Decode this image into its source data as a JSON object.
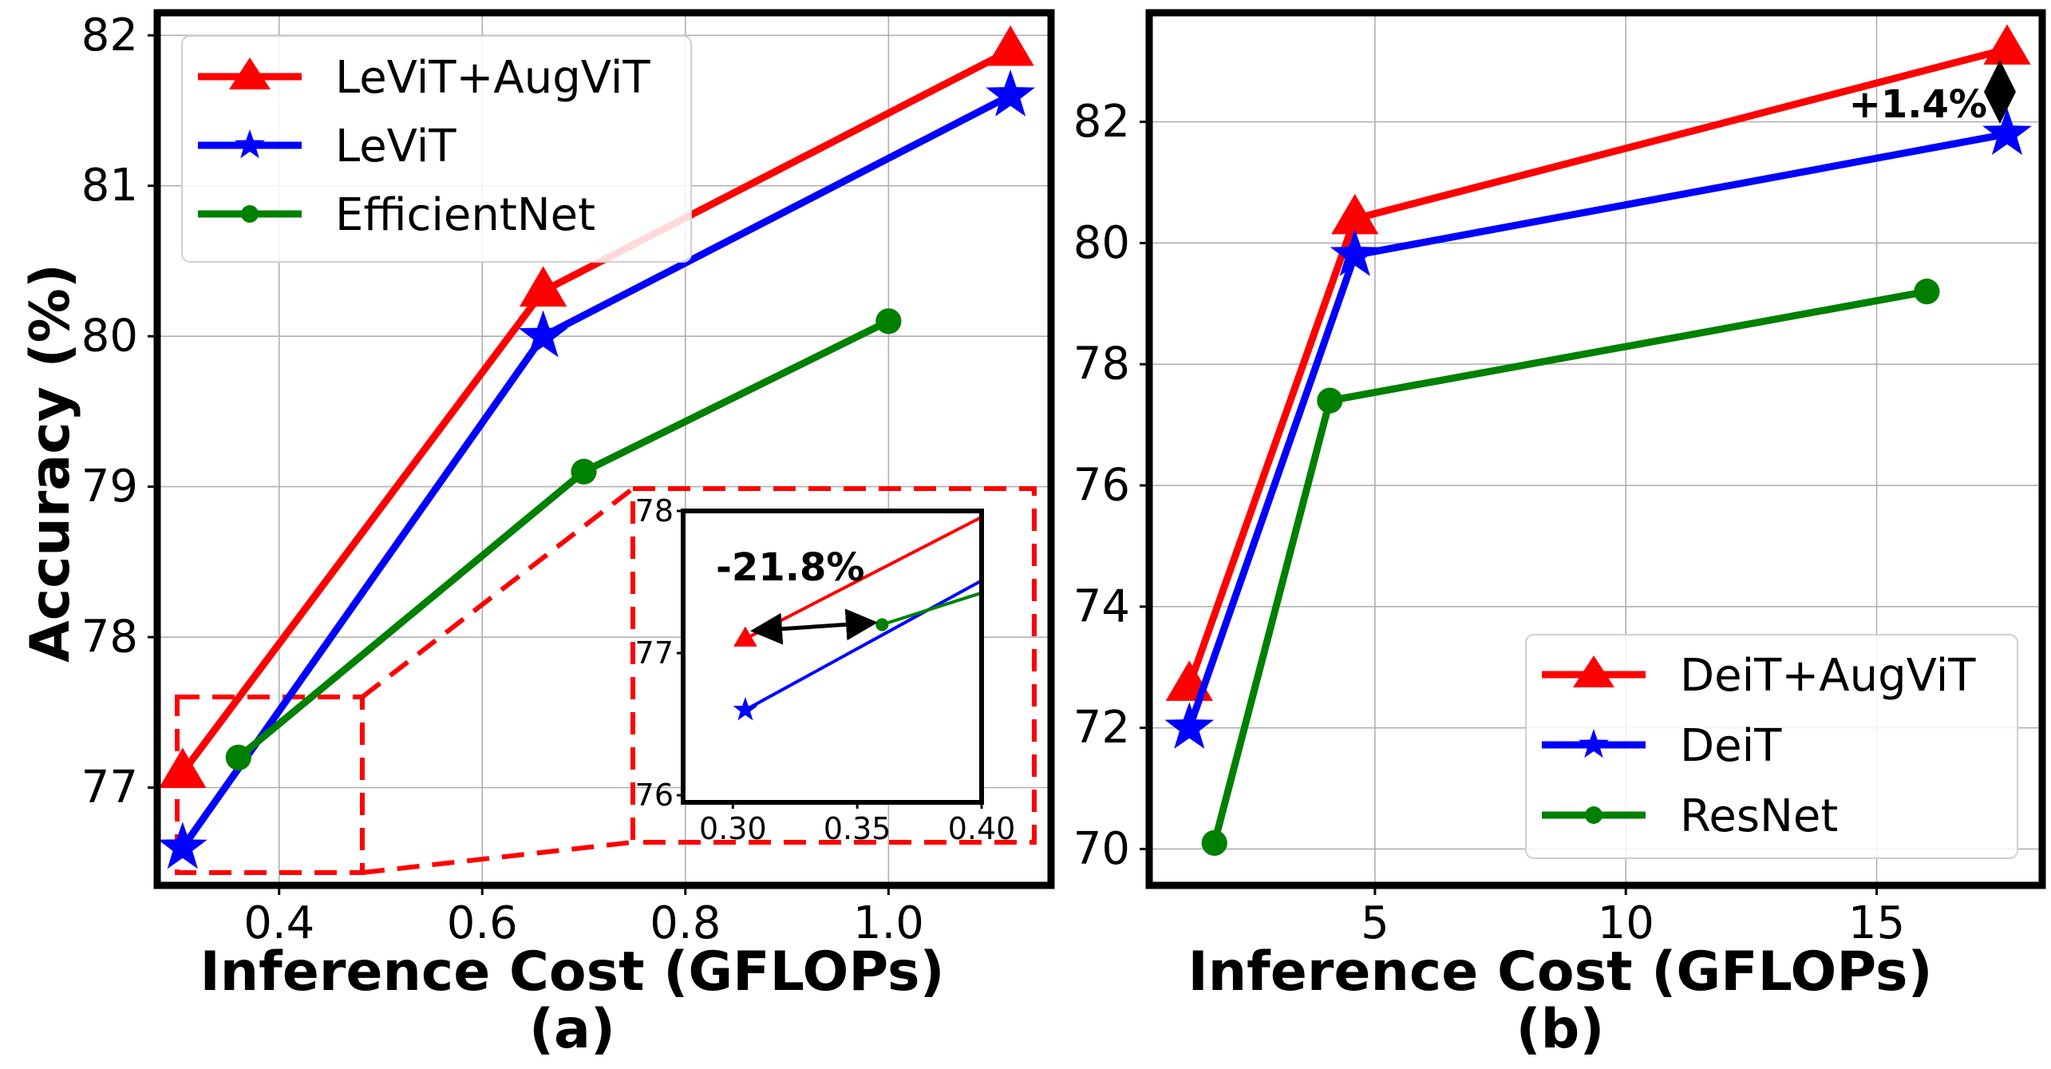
{
  "chart_data": [
    {
      "type": "line",
      "subplot_label": "(a)",
      "xlabel": "Inference Cost (GFLOPs)",
      "ylabel": "Accuracy (%)",
      "xlim": [
        0.28,
        1.16
      ],
      "ylim": [
        76.35,
        82.15
      ],
      "xticks": [
        0.4,
        0.6,
        0.8,
        1.0
      ],
      "xtick_labels": [
        "0.4",
        "0.6",
        "0.8",
        "1.0"
      ],
      "yticks": [
        77,
        78,
        79,
        80,
        81,
        82
      ],
      "ytick_labels": [
        "77",
        "78",
        "79",
        "80",
        "81",
        "82"
      ],
      "grid": true,
      "legend_position": "top-left",
      "series": [
        {
          "name": "LeViT+AugViT",
          "color": "#ff0000",
          "marker": "triangle",
          "x": [
            0.305,
            0.66,
            1.12
          ],
          "y": [
            77.1,
            80.3,
            81.9
          ]
        },
        {
          "name": "LeViT",
          "color": "#0000ff",
          "marker": "star",
          "x": [
            0.305,
            0.66,
            1.12
          ],
          "y": [
            76.6,
            80.0,
            81.6
          ]
        },
        {
          "name": "EfficientNet",
          "color": "#008000",
          "marker": "circle",
          "x": [
            0.36,
            0.7,
            1.0
          ],
          "y": [
            77.2,
            79.1,
            80.1
          ]
        }
      ],
      "inset": {
        "xlim": [
          0.28,
          0.4
        ],
        "ylim": [
          75.95,
          78.0
        ],
        "xticks": [
          0.3,
          0.35,
          0.4
        ],
        "xtick_labels": [
          "0.30",
          "0.35",
          "0.40"
        ],
        "yticks": [
          76,
          77,
          78
        ],
        "ytick_labels": [
          "76",
          "77",
          "78"
        ],
        "annotation": "-21.8%"
      }
    },
    {
      "type": "line",
      "subplot_label": "(b)",
      "xlabel": "Inference Cost (GFLOPs)",
      "ylabel": "",
      "xlim": [
        0.5,
        18.3
      ],
      "ylim": [
        69.4,
        83.8
      ],
      "xticks": [
        5,
        10,
        15
      ],
      "xtick_labels": [
        "5",
        "10",
        "15"
      ],
      "yticks": [
        70,
        72,
        74,
        76,
        78,
        80,
        82
      ],
      "ytick_labels": [
        "70",
        "72",
        "74",
        "76",
        "78",
        "80",
        "82"
      ],
      "grid": true,
      "legend_position": "bottom-right",
      "annotation": "+1.4%",
      "series": [
        {
          "name": "DeiT+AugViT",
          "color": "#ff0000",
          "marker": "triangle",
          "x": [
            1.3,
            4.6,
            17.6
          ],
          "y": [
            72.7,
            80.4,
            83.2
          ]
        },
        {
          "name": "DeiT",
          "color": "#0000ff",
          "marker": "star",
          "x": [
            1.3,
            4.6,
            17.6
          ],
          "y": [
            72.0,
            79.8,
            81.8
          ]
        },
        {
          "name": "ResNet",
          "color": "#008000",
          "marker": "circle",
          "x": [
            1.8,
            4.1,
            16.0
          ],
          "y": [
            70.1,
            77.4,
            79.2
          ]
        }
      ]
    }
  ]
}
